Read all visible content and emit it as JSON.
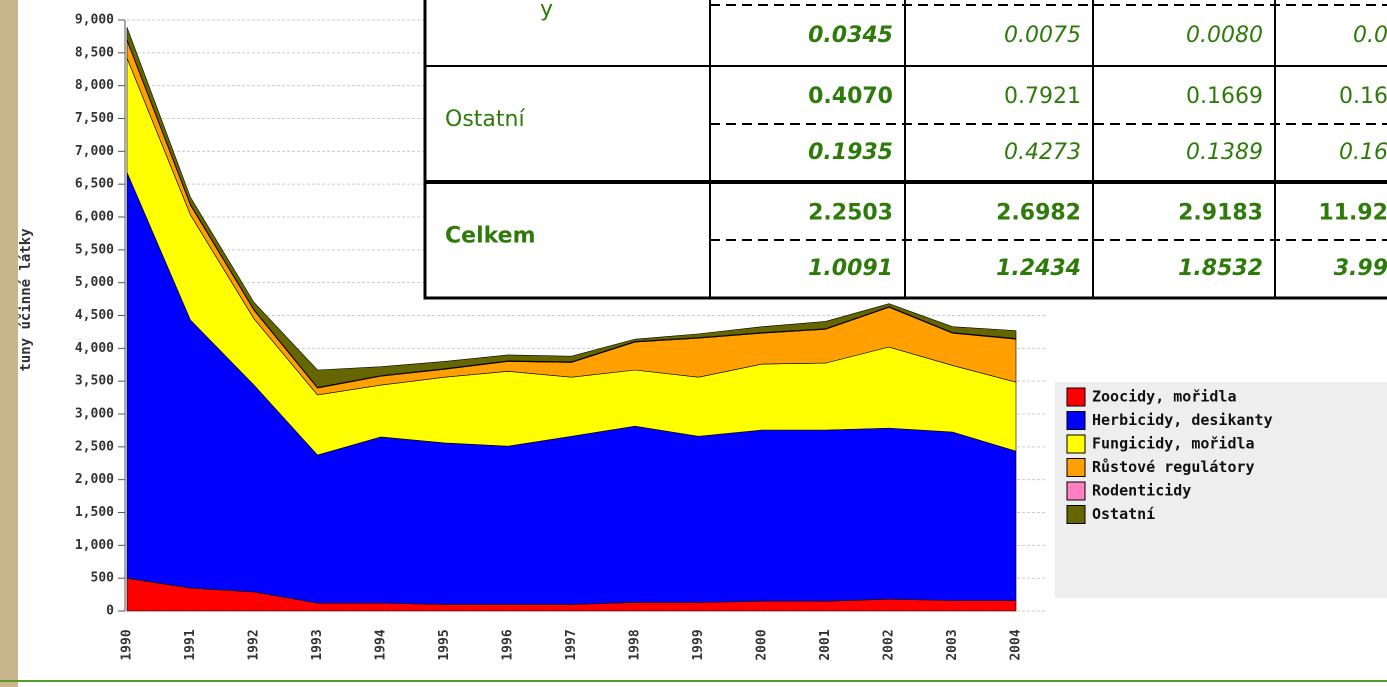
{
  "chart_data": {
    "type": "stacked_area",
    "y_label": "tuny účinné látky",
    "categories": [
      "1990",
      "1991",
      "1992",
      "1993",
      "1994",
      "1995",
      "1996",
      "1997",
      "1998",
      "1999",
      "2000",
      "2001",
      "2002",
      "2003",
      "2004"
    ],
    "ylim": [
      0,
      9000
    ],
    "yticks": [
      0,
      500,
      {
        "value": 1000,
        "label": "1,000"
      },
      {
        "value": 1500,
        "label": "1,500"
      },
      {
        "value": 2000,
        "label": "2,000"
      },
      {
        "value": 2500,
        "label": "2,500"
      },
      {
        "value": 3000,
        "label": "3,000"
      },
      {
        "value": 3500,
        "label": "3,500"
      },
      {
        "value": 4000,
        "label": "4,000"
      },
      {
        "value": 4500,
        "label": "4,500"
      },
      {
        "value": 5000,
        "label": "5,000"
      },
      {
        "value": 5500,
        "label": "5,500"
      },
      {
        "value": 6000,
        "label": "6,000"
      },
      {
        "value": 6500,
        "label": "6,500"
      },
      {
        "value": 7000,
        "label": "7,000"
      },
      {
        "value": 7500,
        "label": "7,500"
      },
      {
        "value": 8000,
        "label": "8,000"
      },
      {
        "value": 8500,
        "label": "8,500"
      },
      {
        "value": 9000,
        "label": "9,000"
      }
    ],
    "grid": true,
    "series": [
      {
        "name": "Zoocidy, mořidla",
        "color": "#ff0000",
        "values": [
          500,
          350,
          290,
          120,
          120,
          100,
          100,
          100,
          130,
          130,
          150,
          150,
          180,
          160,
          160
        ]
      },
      {
        "name": "Herbicidy, desikanty",
        "color": "#0000ff",
        "values": [
          6180,
          4080,
          3150,
          2255,
          2530,
          2460,
          2410,
          2560,
          2685,
          2530,
          2605,
          2605,
          2605,
          2565,
          2275
        ]
      },
      {
        "name": "Fungicidy, mořidla",
        "color": "#ffff00",
        "values": [
          1740,
          1600,
          1010,
          915,
          790,
          1000,
          1140,
          900,
          855,
          900,
          1005,
          1020,
          1235,
          1015,
          1050
        ]
      },
      {
        "name": "Růstové regulátory",
        "color": "#ffa000",
        "values": [
          270,
          150,
          130,
          105,
          135,
          120,
          150,
          225,
          425,
          595,
          470,
          515,
          605,
          490,
          655
        ]
      },
      {
        "name": "Rodenticidy",
        "color": "#ff80c0",
        "values": [
          10,
          10,
          10,
          10,
          10,
          10,
          10,
          10,
          10,
          10,
          10,
          10,
          10,
          10,
          10
        ]
      },
      {
        "name": "Ostatní",
        "color": "#666600",
        "values": [
          190,
          110,
          110,
          265,
          135,
          110,
          90,
          85,
          35,
          55,
          90,
          110,
          45,
          90,
          120
        ]
      }
    ]
  },
  "table": {
    "rows": [
      {
        "label": "y",
        "values": [
          "0.0345",
          "0.0075",
          "0.0080",
          "0.0"
        ]
      },
      {
        "label": "Ostatní",
        "values": [
          "0.4070",
          "0.7921",
          "0.1669",
          "0.16"
        ],
        "values2": [
          "0.1935",
          "0.4273",
          "0.1389",
          "0.16"
        ]
      },
      {
        "label": "Celkem",
        "values": [
          "2.2503",
          "2.6982",
          "2.9183",
          "11.92"
        ],
        "values2": [
          "1.0091",
          "1.2434",
          "1.8532",
          "3.99"
        ]
      }
    ]
  }
}
